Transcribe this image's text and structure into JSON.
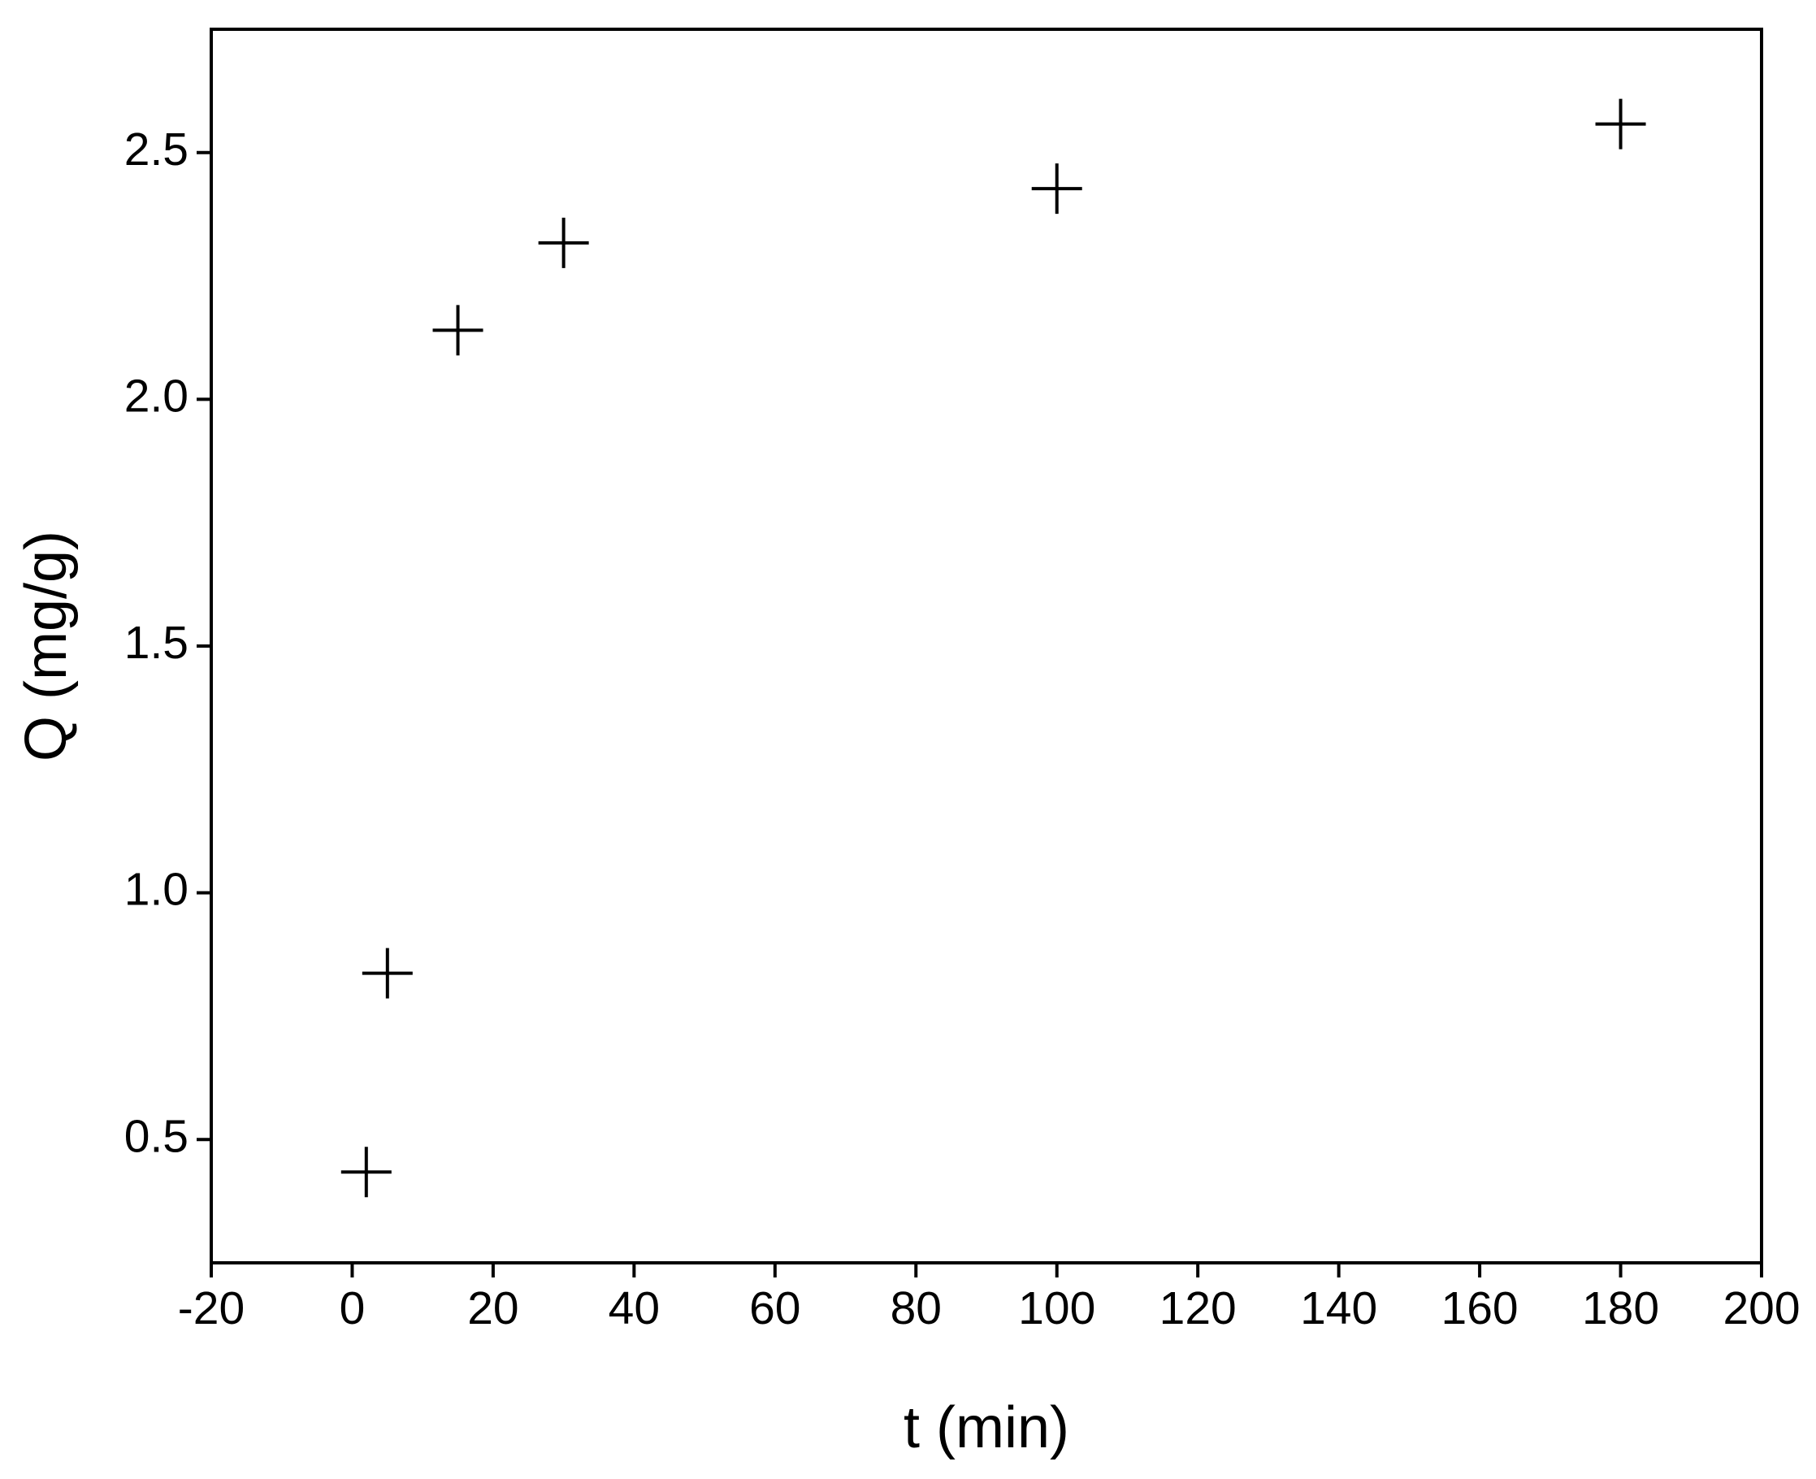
{
  "chart_data": {
    "type": "scatter",
    "x_label": "t (min)",
    "y_label": "Q (mg/g)",
    "x": [
      2,
      5,
      15,
      30,
      100,
      180
    ],
    "values": [
      0.434,
      0.837,
      2.14,
      2.317,
      2.427,
      2.558
    ],
    "color": "#000000",
    "marker": "+",
    "xlim": [
      -20,
      200
    ],
    "xticks": [
      -20,
      0,
      20,
      40,
      60,
      80,
      100,
      120,
      140,
      160,
      180,
      200
    ],
    "ylim": [
      0.25,
      2.75
    ],
    "yticks": [
      0.5,
      {
        "value": 1,
        "label": "1.0"
      },
      1.5,
      {
        "value": 2,
        "label": "2.0"
      },
      2.5
    ],
    "grid": false
  }
}
